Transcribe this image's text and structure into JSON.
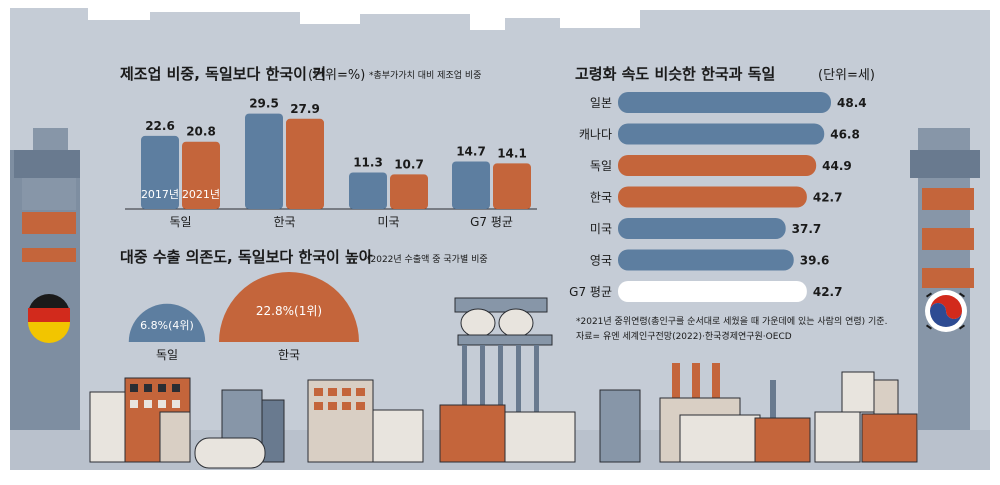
{
  "colors": {
    "background": "#c5ccd6",
    "sky": "#c5ccd6",
    "blue": "#5d7ea0",
    "orange": "#c4653b",
    "white": "#ffffff",
    "dark": "#2a2d33",
    "building_light": "#e8e4de",
    "building_tan": "#d9cfc4"
  },
  "chart_data": [
    {
      "type": "bar",
      "title": "제조업 비중, 독일보다 한국이 커",
      "unit_label": "(단위=%)",
      "note": "*총부가가치 대비 제조업 비중",
      "categories": [
        "독일",
        "한국",
        "미국",
        "G7 평균"
      ],
      "series": [
        {
          "name": "2017년",
          "color": "#5d7ea0",
          "values": [
            22.6,
            29.5,
            11.3,
            14.7
          ],
          "labels": [
            "22.6",
            "29.5",
            "11.3",
            "14.7"
          ]
        },
        {
          "name": "2021년",
          "color": "#c4653b",
          "values": [
            20.8,
            27.9,
            10.7,
            14.1
          ],
          "labels": [
            "20.8",
            "27.9",
            "10.7",
            "14.1"
          ]
        }
      ],
      "ylim": [
        0,
        30
      ]
    },
    {
      "type": "pie",
      "title": "대중 수출 의존도, 독일보다 한국이 높아",
      "note": "*2022년 수출액 중  국가별 비중",
      "items": [
        {
          "name": "독일",
          "value": 6.8,
          "label": "6.8%(4위)",
          "color": "#5d7ea0"
        },
        {
          "name": "한국",
          "value": 22.8,
          "label": "22.8%(1위)",
          "color": "#c4653b"
        }
      ]
    },
    {
      "type": "bar",
      "orientation": "horizontal",
      "title": "고령화 속도 비슷한 한국과 독일",
      "unit_label": "(단위=세)",
      "categories": [
        "일본",
        "캐나다",
        "독일",
        "한국",
        "미국",
        "영국",
        "G7 평균"
      ],
      "values": [
        48.4,
        46.8,
        44.9,
        42.7,
        37.7,
        39.6,
        42.7
      ],
      "labels": [
        "48.4",
        "46.8",
        "44.9",
        "42.7",
        "37.7",
        "39.6",
        "42.7"
      ],
      "colors": [
        "#5d7ea0",
        "#5d7ea0",
        "#c4653b",
        "#c4653b",
        "#5d7ea0",
        "#5d7ea0",
        "#ffffff"
      ],
      "xlim": [
        0,
        50
      ],
      "footnote": "*2021년 중위연령(총인구를 순서대로 세웠을 때 가운데에 있는 사람의 연령) 기준.",
      "source": "자료= 유엔 세계인구전망(2022)·한국경제연구원·OECD"
    }
  ]
}
